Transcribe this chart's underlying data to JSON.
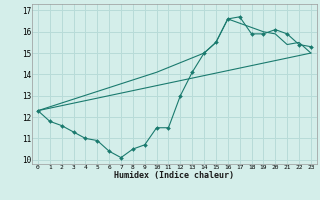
{
  "xlabel": "Humidex (Indice chaleur)",
  "ylabel": "",
  "xlim": [
    -0.5,
    23.5
  ],
  "ylim": [
    9.8,
    17.3
  ],
  "xticks": [
    0,
    1,
    2,
    3,
    4,
    5,
    6,
    7,
    8,
    9,
    10,
    11,
    12,
    13,
    14,
    15,
    16,
    17,
    18,
    19,
    20,
    21,
    22,
    23
  ],
  "yticks": [
    10,
    11,
    12,
    13,
    14,
    15,
    16,
    17
  ],
  "bg_color": "#d4eeea",
  "line_color": "#1a7a6e",
  "grid_color": "#b8dbd8",
  "line1_x": [
    0,
    1,
    2,
    3,
    4,
    5,
    6,
    7,
    8,
    9,
    10,
    11,
    12,
    13,
    14,
    15,
    16,
    17,
    18,
    19,
    20,
    21,
    22,
    23
  ],
  "line1_y": [
    12.3,
    11.8,
    11.6,
    11.3,
    11.0,
    10.9,
    10.4,
    10.1,
    10.5,
    10.7,
    11.5,
    11.5,
    13.0,
    14.1,
    15.0,
    15.5,
    16.6,
    16.7,
    15.9,
    15.9,
    16.1,
    15.9,
    15.4,
    15.3
  ],
  "line2_x": [
    0,
    10,
    14,
    15,
    16,
    19,
    20,
    21,
    22,
    23
  ],
  "line2_y": [
    12.3,
    14.1,
    15.0,
    15.5,
    16.6,
    16.0,
    15.9,
    15.4,
    15.5,
    15.0
  ],
  "line3_x": [
    0,
    23
  ],
  "line3_y": [
    12.3,
    15.0
  ]
}
